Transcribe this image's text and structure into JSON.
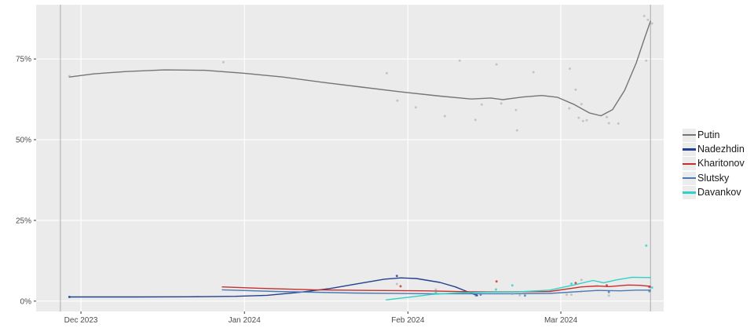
{
  "figure": {
    "background": "#ffffff",
    "panel_background": "#ebebeb",
    "grid_color": "#ffffff",
    "tick_color": "#333333",
    "tick_label_color": "#4d4d4d",
    "event_line_color": "#ababab"
  },
  "chart_data": {
    "type": "scatter+smoothed-line",
    "title": "",
    "xlabel": "",
    "ylabel": "",
    "x_axis": {
      "unit": "days since 2023-12-01",
      "domain": [
        -8.5,
        110.5
      ],
      "ticks": [
        {
          "label": "Dec 2023",
          "day": 0
        },
        {
          "label": "Jan 2024",
          "day": 31
        },
        {
          "label": "Feb 2024",
          "day": 62
        },
        {
          "label": "Mar 2024",
          "day": 91
        }
      ]
    },
    "y_axis": {
      "unit": "percent",
      "domain": [
        -3.2,
        91.8
      ],
      "ticks": [
        {
          "label": "0%",
          "value": 0
        },
        {
          "label": "25%",
          "value": 25
        },
        {
          "label": "50%",
          "value": 50
        },
        {
          "label": "75%",
          "value": 75
        }
      ]
    },
    "event_lines_days": [
      -3.9,
      108
    ],
    "grid": true,
    "legend_position": "right",
    "legend_entries": [
      "Putin",
      "Nadezhdin",
      "Kharitonov",
      "Slutsky",
      "Davankov"
    ],
    "series": [
      {
        "name": "Putin",
        "color": "#757575",
        "point_color": "#9e9e9e",
        "line": [
          [
            -2.2,
            69.4
          ],
          [
            2.5,
            70.4
          ],
          [
            8.5,
            71.1
          ],
          [
            15.9,
            71.6
          ],
          [
            23.4,
            71.5
          ],
          [
            30.8,
            70.6
          ],
          [
            38.3,
            69.4
          ],
          [
            45.7,
            67.8
          ],
          [
            53.2,
            66.3
          ],
          [
            60.6,
            64.8
          ],
          [
            68.1,
            63.5
          ],
          [
            74,
            62.6
          ],
          [
            77.7,
            62.9
          ],
          [
            80,
            62.4
          ],
          [
            83.7,
            63.2
          ],
          [
            87.4,
            63.7
          ],
          [
            90.4,
            63.1
          ],
          [
            93.4,
            61
          ],
          [
            96.4,
            58.3
          ],
          [
            98.6,
            57.4
          ],
          [
            100.8,
            59.3
          ],
          [
            103.1,
            65.3
          ],
          [
            105.3,
            73.8
          ],
          [
            106.8,
            81.1
          ],
          [
            108,
            86.7
          ]
        ],
        "points": [
          [
            -2.2,
            69.7
          ],
          [
            27,
            74
          ],
          [
            58,
            70.6
          ],
          [
            60,
            62.1
          ],
          [
            63.5,
            60
          ],
          [
            69,
            57.3
          ],
          [
            71.8,
            74.5
          ],
          [
            74.8,
            56.1
          ],
          [
            76,
            60.9
          ],
          [
            78.8,
            73.3
          ],
          [
            79.7,
            61.2
          ],
          [
            82.5,
            59.2
          ],
          [
            82.7,
            52.9
          ],
          [
            85.8,
            70.9
          ],
          [
            92.7,
            72
          ],
          [
            92.6,
            59.7
          ],
          [
            93.8,
            65.5
          ],
          [
            94.4,
            56.8
          ],
          [
            94.9,
            61
          ],
          [
            95.2,
            55.8
          ],
          [
            95.9,
            56
          ],
          [
            99.7,
            57
          ],
          [
            100.1,
            55.1
          ],
          [
            101.9,
            55
          ],
          [
            106.8,
            88.3
          ],
          [
            107.2,
            74.5
          ],
          [
            107.5,
            87.1
          ],
          [
            108.3,
            86
          ]
        ]
      },
      {
        "name": "Nadezhdin",
        "color": "#23408f",
        "point_color": "#23408f",
        "line": [
          [
            -2.2,
            1.3
          ],
          [
            10,
            1.3
          ],
          [
            20,
            1.35
          ],
          [
            29.3,
            1.5
          ],
          [
            35.3,
            1.8
          ],
          [
            41.3,
            2.7
          ],
          [
            47.2,
            3.9
          ],
          [
            53.2,
            5.6
          ],
          [
            57.6,
            6.8
          ],
          [
            60.6,
            7.2
          ],
          [
            63.6,
            7
          ],
          [
            68.1,
            5.8
          ],
          [
            71,
            4.4
          ],
          [
            73.3,
            2.9
          ],
          [
            75.2,
            1.7
          ]
        ],
        "points": [
          [
            -2.2,
            1.3
          ],
          [
            59.9,
            7.8
          ],
          [
            75,
            1.8
          ]
        ]
      },
      {
        "name": "Kharitonov",
        "color": "#c62f2f",
        "point_color": "#c62f2f",
        "line": [
          [
            26.8,
            4.4
          ],
          [
            33.8,
            4
          ],
          [
            44.2,
            3.5
          ],
          [
            54.7,
            3.3
          ],
          [
            65.1,
            3.2
          ],
          [
            74,
            2.9
          ],
          [
            81.5,
            2.9
          ],
          [
            88.9,
            3
          ],
          [
            94.9,
            4.4
          ],
          [
            97.9,
            4.7
          ],
          [
            100.1,
            4.5
          ],
          [
            103.8,
            5
          ],
          [
            106,
            4.9
          ],
          [
            108,
            4.6
          ]
        ],
        "points": [
          [
            60.6,
            4.6
          ],
          [
            78.8,
            6.1
          ],
          [
            93.8,
            5.6
          ],
          [
            99.7,
            4.9
          ],
          [
            107.8,
            4.4
          ]
        ]
      },
      {
        "name": "Slutsky",
        "color": "#4a7ab5",
        "point_color": "#4a7ab5",
        "line": [
          [
            26.8,
            3.5
          ],
          [
            36.8,
            3
          ],
          [
            51.7,
            2.5
          ],
          [
            66.6,
            2.3
          ],
          [
            81.5,
            2.3
          ],
          [
            88.9,
            2.4
          ],
          [
            97.9,
            3.3
          ],
          [
            102.3,
            3.2
          ],
          [
            105.3,
            3.4
          ],
          [
            108,
            3.4
          ]
        ],
        "points": [
          [
            75.8,
            2
          ],
          [
            84.2,
            1.7
          ],
          [
            100.1,
            2.8
          ],
          [
            107.8,
            3.1
          ]
        ]
      },
      {
        "name": "Davankov",
        "color": "#2fd2c5",
        "point_color": "#2fd2c5",
        "line": [
          [
            57.9,
            0.4
          ],
          [
            62.1,
            1.2
          ],
          [
            66.6,
            2.1
          ],
          [
            71,
            2.5
          ],
          [
            77,
            2.8
          ],
          [
            83,
            2.9
          ],
          [
            88.9,
            3.4
          ],
          [
            93.4,
            5
          ],
          [
            97.1,
            6.4
          ],
          [
            99.1,
            5.7
          ],
          [
            101.6,
            6.6
          ],
          [
            104.5,
            7.4
          ],
          [
            108,
            7.3
          ]
        ],
        "points": [
          [
            67.3,
            2.6
          ],
          [
            78.7,
            3.6
          ],
          [
            81.8,
            4.9
          ],
          [
            93,
            5.4
          ],
          [
            107.2,
            17.2
          ],
          [
            108.3,
            4.2
          ]
        ]
      }
    ],
    "unattributed_points": {
      "color": "#9c9c9c",
      "points": [
        [
          59.9,
          5.3
        ],
        [
          67.3,
          3.6
        ],
        [
          74.8,
          1.7
        ],
        [
          81.8,
          2.2
        ],
        [
          83.2,
          1.8
        ],
        [
          92.1,
          2
        ],
        [
          93,
          2
        ],
        [
          94.9,
          6.6
        ],
        [
          94.9,
          3
        ],
        [
          100.1,
          1.7
        ]
      ]
    }
  }
}
